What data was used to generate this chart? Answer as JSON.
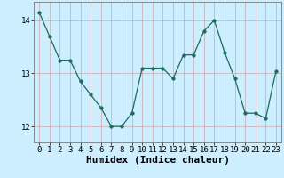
{
  "x": [
    0,
    1,
    2,
    3,
    4,
    5,
    6,
    7,
    8,
    9,
    10,
    11,
    12,
    13,
    14,
    15,
    16,
    17,
    18,
    19,
    20,
    21,
    22,
    23
  ],
  "y": [
    14.15,
    13.7,
    13.25,
    13.25,
    12.85,
    12.6,
    12.35,
    12.0,
    12.0,
    12.25,
    13.1,
    13.1,
    13.1,
    12.9,
    13.35,
    13.35,
    13.8,
    14.0,
    13.4,
    12.9,
    12.25,
    12.25,
    12.15,
    13.05
  ],
  "line_color": "#1a6b5a",
  "marker": "o",
  "marker_size": 2.5,
  "bg_color": "#cceeff",
  "grid_color_major": "#ddaaaa",
  "grid_color_minor": "#ddcccc",
  "xlabel": "Humidex (Indice chaleur)",
  "xlabel_fontsize": 8,
  "tick_fontsize": 6.5,
  "ylim": [
    11.7,
    14.35
  ],
  "yticks": [
    12,
    13,
    14
  ],
  "xticks": [
    0,
    1,
    2,
    3,
    4,
    5,
    6,
    7,
    8,
    9,
    10,
    11,
    12,
    13,
    14,
    15,
    16,
    17,
    18,
    19,
    20,
    21,
    22,
    23
  ]
}
